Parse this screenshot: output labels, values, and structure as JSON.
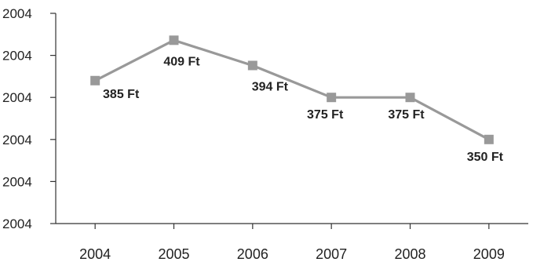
{
  "chart_data": {
    "type": "line",
    "title": "",
    "xlabel": "",
    "ylabel": "",
    "categories": [
      "2004",
      "2005",
      "2006",
      "2007",
      "2008",
      "2009"
    ],
    "series": [
      {
        "values": [
          385,
          409,
          394,
          375,
          375,
          350
        ],
        "labels": [
          "385 Ft",
          "409 Ft",
          "394 Ft",
          "375 Ft",
          "375 Ft",
          "350 Ft"
        ],
        "color": "#999999",
        "marker": "square"
      }
    ],
    "yticks": [
      "2004",
      "2004",
      "2004",
      "2004",
      "2004",
      "2004"
    ],
    "ylim": [
      300,
      425
    ],
    "grid": false,
    "legend": "none"
  }
}
